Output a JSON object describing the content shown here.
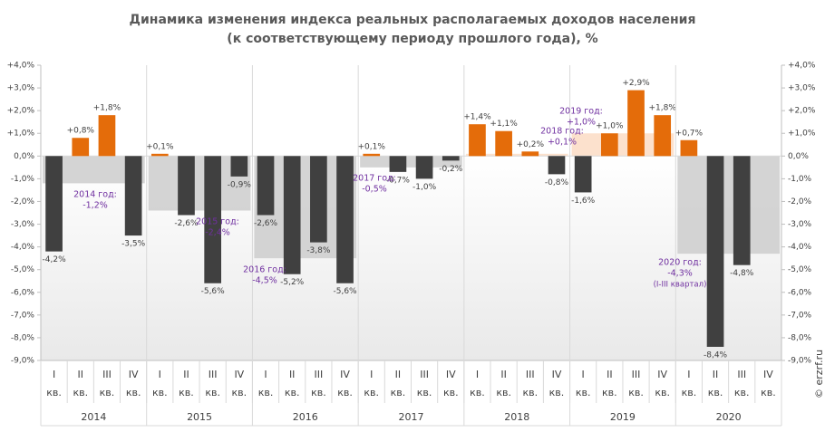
{
  "chart_data": {
    "type": "bar",
    "title": "Динамика изменения индекса реальных располагаемых доходов населения",
    "subtitle": "(к соответствующему  периоду прошлого года), %",
    "categories": [
      [
        "I",
        "кв."
      ],
      [
        "II",
        "кв."
      ],
      [
        "III",
        "кв."
      ],
      [
        "IV",
        "кв."
      ],
      [
        "I",
        "кв."
      ],
      [
        "II",
        "кв."
      ],
      [
        "III",
        "кв."
      ],
      [
        "IV",
        "кв."
      ],
      [
        "I",
        "кв."
      ],
      [
        "II",
        "кв."
      ],
      [
        "III",
        "кв."
      ],
      [
        "IV",
        "кв."
      ],
      [
        "I",
        "кв."
      ],
      [
        "II",
        "кв."
      ],
      [
        "III",
        "кв."
      ],
      [
        "IV",
        "кв."
      ],
      [
        "I",
        "кв."
      ],
      [
        "II",
        "кв."
      ],
      [
        "III",
        "кв."
      ],
      [
        "IV",
        "кв."
      ],
      [
        "I",
        "кв."
      ],
      [
        "II",
        "кв."
      ],
      [
        "III",
        "кв."
      ],
      [
        "IV",
        "кв."
      ],
      [
        "I",
        "кв."
      ],
      [
        "II",
        "кв."
      ],
      [
        "III",
        "кв."
      ],
      [
        "IV",
        "кв."
      ]
    ],
    "groups": [
      "2014",
      "2015",
      "2016",
      "2017",
      "2018",
      "2019",
      "2020"
    ],
    "values": [
      -4.2,
      0.8,
      1.8,
      -3.5,
      0.1,
      -2.6,
      -5.6,
      -0.9,
      -2.6,
      -5.2,
      -3.8,
      -5.6,
      0.1,
      -0.7,
      -1.0,
      -0.2,
      1.4,
      1.1,
      0.2,
      -0.8,
      -1.6,
      1.0,
      2.9,
      1.8,
      0.7,
      -8.4,
      -4.8,
      null
    ],
    "value_labels": [
      "-4,2%",
      "+0,8%",
      "+1,8%",
      "-3,5%",
      "+0,1%",
      "-2,6%",
      "-5,6%",
      "-0,9%",
      "-2,6%",
      "-5,2%",
      "-3,8%",
      "-5,6%",
      "+0,1%",
      "-0,7%",
      "-1,0%",
      "-0,2%",
      "+1,4%",
      "+1,1%",
      "+0,2%",
      "-0,8%",
      "-1,6%",
      "+1,0%",
      "+2,9%",
      "+1,8%",
      "+0,7%",
      "-8,4%",
      "-4,8%",
      null
    ],
    "positive_color": "#e46c0a",
    "negative_color": "#404040",
    "annual": {
      "values": [
        -1.2,
        -2.4,
        -4.5,
        -0.5,
        0.1,
        1.0,
        -4.3
      ],
      "labels": [
        [
          "2014 год:",
          "-1,2%"
        ],
        [
          "2015 год:",
          "-2,4%"
        ],
        [
          "2016 год:",
          "-4,5%"
        ],
        [
          "2017 год:",
          "-0,5%"
        ],
        [
          "2018 год:",
          "+0,1%"
        ],
        [
          "2019 год:",
          "+1,0%"
        ],
        [
          "2020 год:",
          "-4,3%",
          "(I-III квартал)"
        ]
      ],
      "positive_color": "#fbdcc4",
      "negative_color": "#cdcdcd",
      "label_color": "#7030a0"
    },
    "ylim": [
      -9,
      4
    ],
    "yticks": [
      {
        "value": -9,
        "label": "-9,0%"
      },
      {
        "value": -8,
        "label": "-8,0%"
      },
      {
        "value": -7,
        "label": "-7,0%"
      },
      {
        "value": -6,
        "label": "-6,0%"
      },
      {
        "value": -5,
        "label": "-5,0%"
      },
      {
        "value": -4,
        "label": "-4,0%"
      },
      {
        "value": -3,
        "label": "-3,0%"
      },
      {
        "value": -2,
        "label": "-2,0%"
      },
      {
        "value": -1,
        "label": "-1,0%"
      },
      {
        "value": 0,
        "label": "0,0%"
      },
      {
        "value": 1,
        "label": "+1,0%"
      },
      {
        "value": 2,
        "label": "+2,0%"
      },
      {
        "value": 3,
        "label": "+3,0%"
      },
      {
        "value": 4,
        "label": "+4,0%"
      }
    ],
    "watermark": "© erzrf.ru"
  }
}
